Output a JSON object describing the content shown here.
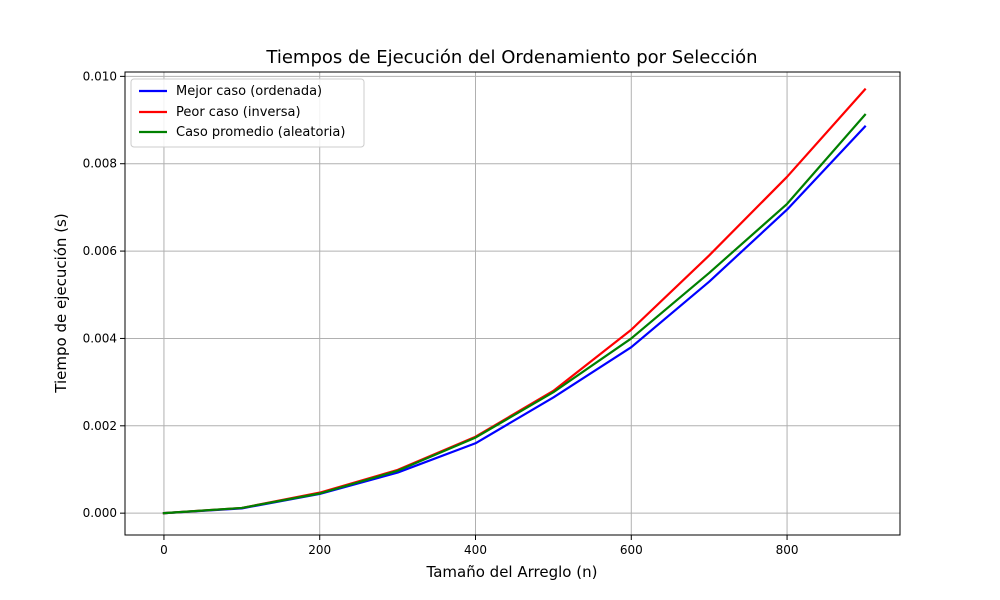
{
  "chart_data": {
    "type": "line",
    "title": "Tiempos de Ejecución del Ordenamiento por Selección",
    "xlabel": "Tamaño del Arreglo (n)",
    "ylabel": "Tiempo de ejecución (s)",
    "xlim": [
      -50,
      945
    ],
    "ylim": [
      -0.0005,
      0.0101
    ],
    "xticks": [
      0,
      200,
      400,
      600,
      800
    ],
    "yticks": [
      0.0,
      0.002,
      0.004,
      0.006,
      0.008,
      0.01
    ],
    "xtick_labels": [
      "0",
      "200",
      "400",
      "600",
      "800"
    ],
    "ytick_labels": [
      "0.000",
      "0.002",
      "0.004",
      "0.006",
      "0.008",
      "0.010"
    ],
    "grid": true,
    "legend_position": "top-left",
    "x": [
      0,
      100,
      200,
      300,
      400,
      500,
      600,
      700,
      800,
      900
    ],
    "series": [
      {
        "name": "Mejor caso (ordenada)",
        "color": "#0000ff",
        "values": [
          0.0,
          0.00011,
          0.00044,
          0.00093,
          0.0016,
          0.00265,
          0.0038,
          0.0053,
          0.00695,
          0.00885
        ]
      },
      {
        "name": "Peor caso (inversa)",
        "color": "#ff0000",
        "values": [
          0.0,
          0.00012,
          0.00047,
          0.00099,
          0.00175,
          0.0028,
          0.0042,
          0.0059,
          0.0077,
          0.0097
        ]
      },
      {
        "name": "Caso promedio (aleatoria)",
        "color": "#008000",
        "values": [
          0.0,
          0.00012,
          0.00045,
          0.00097,
          0.00173,
          0.00277,
          0.004,
          0.0055,
          0.00708,
          0.00912
        ]
      }
    ]
  }
}
